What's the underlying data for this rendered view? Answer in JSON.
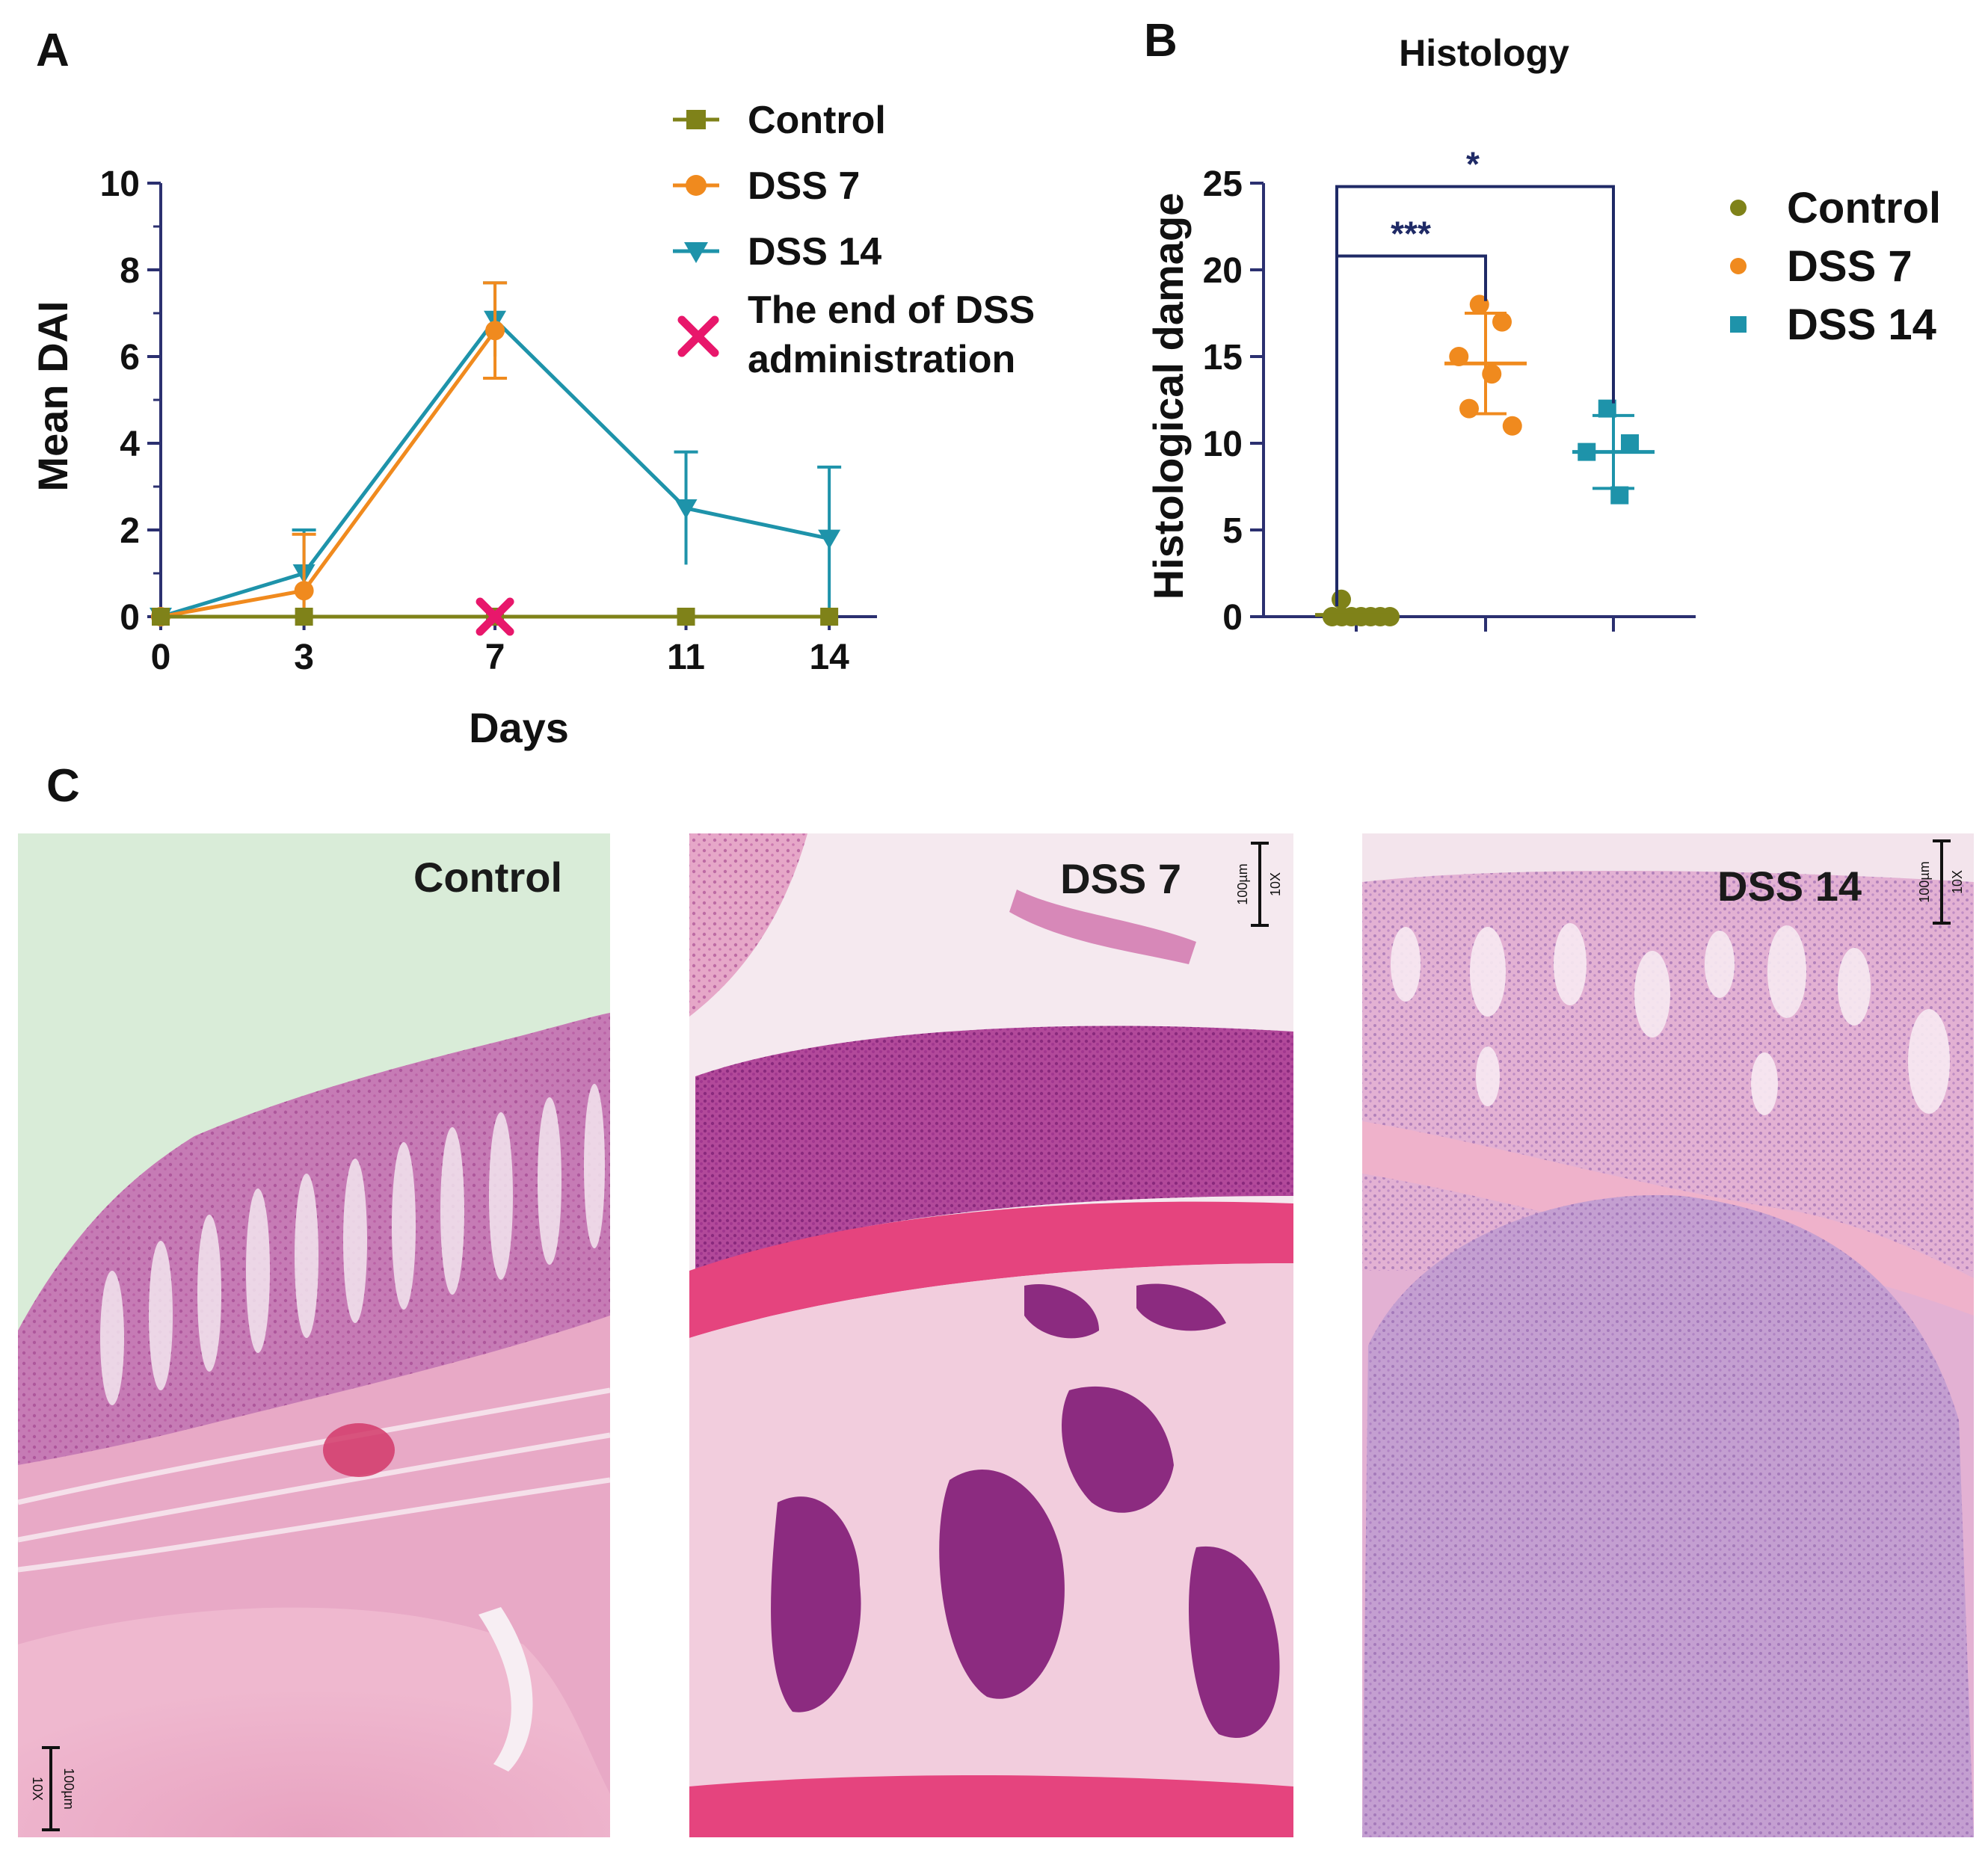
{
  "panels": {
    "a": {
      "letter": "A"
    },
    "b": {
      "letter": "B"
    },
    "c": {
      "letter": "C"
    }
  },
  "chart_data": [
    {
      "type": "line",
      "title": "",
      "xlabel": "Days",
      "ylabel": "Mean DAI",
      "x": [
        0,
        3,
        7,
        11,
        14
      ],
      "xticks": [
        "0",
        "3",
        "7",
        "11",
        "14"
      ],
      "yticks": [
        "0",
        "2",
        "4",
        "6",
        "8",
        "10"
      ],
      "xlim": [
        0,
        15
      ],
      "ylim": [
        0,
        10
      ],
      "series": [
        {
          "name": "Control",
          "color": "#7f8219",
          "marker": "square",
          "x": [
            0,
            3,
            7,
            11,
            14
          ],
          "y": [
            0,
            0,
            0,
            0,
            0
          ],
          "err": [
            0,
            0,
            0,
            0,
            0
          ]
        },
        {
          "name": "DSS 7",
          "color": "#f08a1e",
          "marker": "circle",
          "x": [
            0,
            3,
            7
          ],
          "y": [
            0,
            0.6,
            6.6
          ],
          "err": [
            0,
            1.3,
            1.1
          ]
        },
        {
          "name": "DSS 14",
          "color": "#1e93aa",
          "marker": "triangle-down",
          "x": [
            0,
            3,
            7,
            11,
            14
          ],
          "y": [
            0,
            1.0,
            6.85,
            2.5,
            1.8
          ],
          "err": [
            0,
            1.0,
            0.85,
            1.3,
            1.65
          ]
        }
      ],
      "annotation": {
        "label_line1": "The end of DSS",
        "label_line2": "administration",
        "x": 7,
        "y": 0,
        "color": "#e8176b",
        "marker": "x"
      },
      "legend": "top-right"
    },
    {
      "type": "scatter",
      "title": "Histology",
      "xlabel": "",
      "ylabel": "Histological damage",
      "categories": [
        "Control",
        "DSS 7",
        "DSS 14"
      ],
      "yticks": [
        "0",
        "5",
        "10",
        "15",
        "20",
        "25"
      ],
      "ylim": [
        0,
        25
      ],
      "series": [
        {
          "name": "Control",
          "color": "#7f8219",
          "marker": "circle",
          "points": [
            1,
            0,
            0,
            0,
            0,
            0,
            0,
            0
          ],
          "mean": 0.1,
          "sd": 0.3
        },
        {
          "name": "DSS 7",
          "color": "#f08a1e",
          "marker": "circle",
          "points": [
            18,
            17,
            15,
            14,
            12,
            11
          ],
          "mean": 14.6,
          "sd": 2.9
        },
        {
          "name": "DSS 14",
          "color": "#1e93aa",
          "marker": "square",
          "points": [
            12,
            10,
            9.5,
            7
          ],
          "mean": 9.5,
          "sd": 2.1
        }
      ],
      "comparisons": [
        {
          "from": "Control",
          "to": "DSS 7",
          "label": "***",
          "y": 20.8
        },
        {
          "from": "Control",
          "to": "DSS 14",
          "label": "*",
          "y": 24.8
        }
      ],
      "bracket_color": "#1f2a66",
      "legend": "right"
    }
  ],
  "micrographs": [
    {
      "label": "Control",
      "scale_value": "100µm",
      "magnification": "10X"
    },
    {
      "label": "DSS 7",
      "scale_value": "100µm",
      "magnification": "10X"
    },
    {
      "label": "DSS 14",
      "scale_value": "100µm",
      "magnification": "10X"
    }
  ]
}
